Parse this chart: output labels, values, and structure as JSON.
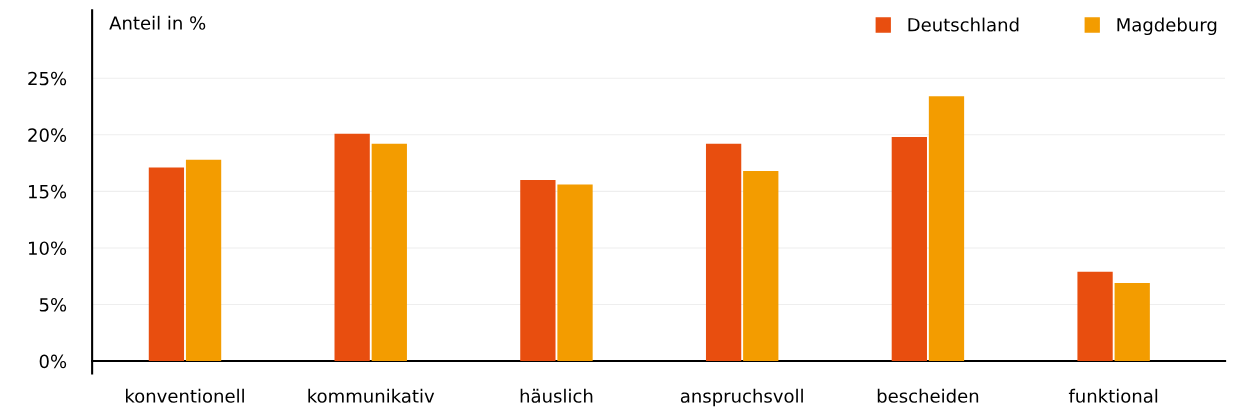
{
  "chart_data": {
    "type": "bar",
    "ylabel": "Anteil in %",
    "categories": [
      "konventionell",
      "kommunikativ",
      "häuslich",
      "anspruchsvoll",
      "bescheiden",
      "funktional"
    ],
    "series": [
      {
        "name": "Deutschland",
        "color": "#e84e0f",
        "values": [
          17.1,
          20.1,
          16.0,
          19.2,
          19.8,
          7.9
        ]
      },
      {
        "name": "Magdeburg",
        "color": "#f39c00",
        "values": [
          17.8,
          19.2,
          15.6,
          16.8,
          23.4,
          6.9
        ]
      }
    ],
    "ylim": [
      -1.1,
      31
    ],
    "yticks": [
      {
        "value": 0,
        "label": "0%"
      },
      {
        "value": 5,
        "label": "5%"
      },
      {
        "value": 10,
        "label": "10%"
      },
      {
        "value": 15,
        "label": "15%"
      },
      {
        "value": 20,
        "label": "20%"
      },
      {
        "value": 25,
        "label": "25%"
      }
    ],
    "grid": "y",
    "legend": "top right"
  }
}
